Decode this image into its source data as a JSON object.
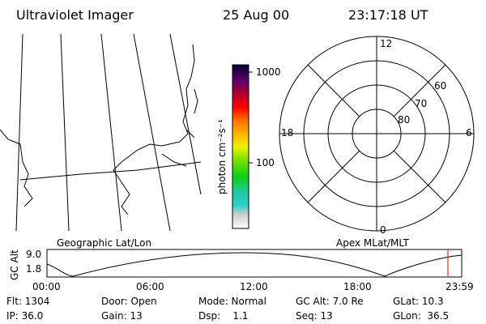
{
  "header": {
    "title": "Ultraviolet Imager",
    "date": "25 Aug 00",
    "time": "23:17:18 UT"
  },
  "colorbar": {
    "label": "photon cm⁻²s⁻¹",
    "ticks": [
      "1000",
      "100"
    ]
  },
  "polar": {
    "mlt_labels": [
      "12",
      "18",
      "6",
      "0"
    ],
    "lat_labels": [
      "60",
      "70",
      "80"
    ]
  },
  "altitude": {
    "left_label": "Geographic Lat/Lon",
    "right_label": "Apex MLat/MLT",
    "axis_label": "GC Alt",
    "yticks": [
      "9.0",
      "1.8"
    ],
    "xticks": [
      "00:00",
      "06:00",
      "12:00",
      "18:00",
      "23:59"
    ]
  },
  "footer": {
    "rows": [
      [
        "Flt: 1304",
        "Door: Open",
        "Mode: Normal",
        "GC Alt: 7.0 Re",
        "GLat: 10.3"
      ],
      [
        "IP: 36.0",
        "Gain: 13",
        "Dsp:    1.1",
        "Seq: 13",
        "GLon:  36.5"
      ]
    ]
  }
}
